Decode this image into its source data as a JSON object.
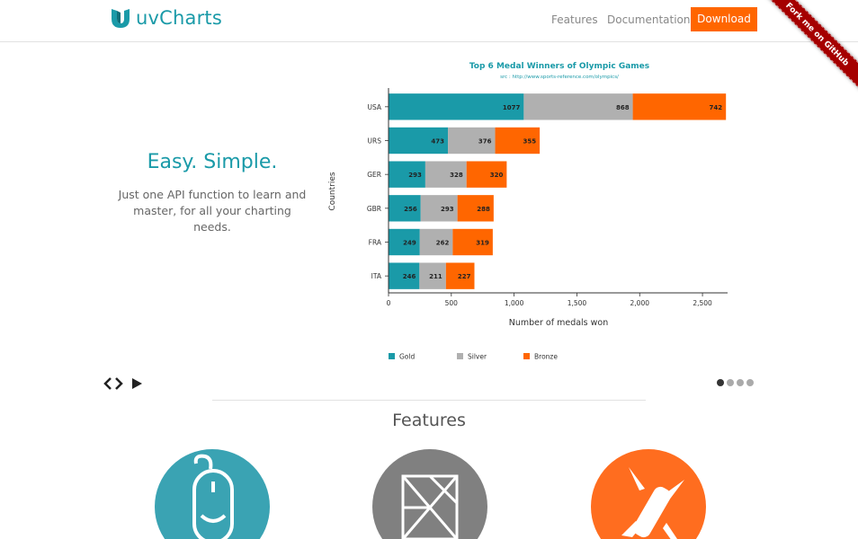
{
  "header": {
    "brand": "uvCharts",
    "nav": {
      "features": "Features",
      "documentation": "Documentation",
      "download": "Download"
    },
    "ribbon": "Fork me on GitHub"
  },
  "hero": {
    "title": "Easy. Simple.",
    "text": "Just one API function to learn and master, for all your charting needs."
  },
  "colors": {
    "gold": "#1a9aa8",
    "silver": "#b0b0b0",
    "bronze": "#ff6600",
    "accent": "#1a9aa8"
  },
  "chart_data": {
    "type": "bar",
    "orientation": "horizontal",
    "stacked": true,
    "title": "Top 6 Medal Winners of Olympic Games",
    "subtitle": "src : http://www.sports-reference.com/olympics/",
    "xlabel": "Number of medals won",
    "ylabel": "Countries",
    "categories": [
      "USA",
      "URS",
      "GER",
      "GBR",
      "FRA",
      "ITA"
    ],
    "series": [
      {
        "name": "Gold",
        "color": "#1a9aa8",
        "values": [
          1077,
          473,
          293,
          256,
          249,
          246
        ]
      },
      {
        "name": "Silver",
        "color": "#b0b0b0",
        "values": [
          868,
          376,
          328,
          293,
          262,
          211
        ]
      },
      {
        "name": "Bronze",
        "color": "#ff6600",
        "values": [
          742,
          355,
          320,
          288,
          319,
          227
        ]
      }
    ],
    "xlim": [
      0,
      2700
    ],
    "xticks": [
      0,
      500,
      1000,
      1500,
      2000,
      2500
    ],
    "xtick_labels": [
      "0",
      "500",
      "1,000",
      "1,500",
      "2,000",
      "2,500"
    ],
    "legend_position": "bottom",
    "grid": false
  },
  "slider": {
    "dots": 4,
    "active": 0
  },
  "features": {
    "title": "Features"
  },
  "icons": [
    "mouse-icon",
    "tangram-icon",
    "swiss-knife-icon"
  ]
}
